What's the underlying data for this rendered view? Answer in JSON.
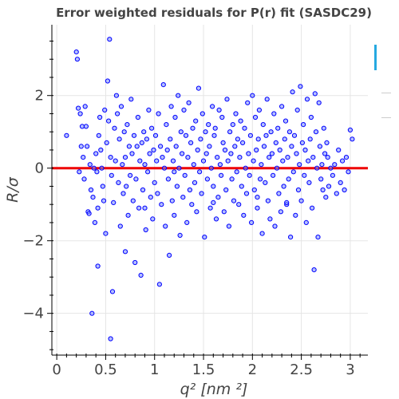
{
  "chart_data": {
    "type": "scatter",
    "title": "Error weighted residuals for P(r) fit (SASDC29)",
    "xlabel": "q² [nm ²]",
    "ylabel": "R/σ",
    "xlim": [
      -0.05,
      3.18
    ],
    "ylim": [
      -5.15,
      3.95
    ],
    "xticks": [
      0,
      0.5,
      1,
      1.5,
      2,
      2.5,
      3
    ],
    "xtick_labels": [
      "0",
      "0.5",
      "1",
      "1.5",
      "2",
      "2.5",
      "3"
    ],
    "yticks": [
      -4,
      -2,
      0,
      2
    ],
    "ytick_labels": [
      "−4",
      "−2",
      "0",
      "2"
    ],
    "grid": true,
    "reference_line": {
      "y": 0,
      "color": "#ee0000"
    },
    "marker": {
      "fill": "#8c96ff",
      "stroke": "#0000ff"
    },
    "points": [
      [
        0.1,
        0.9
      ],
      [
        0.2,
        3.2
      ],
      [
        0.21,
        3.0
      ],
      [
        0.22,
        1.65
      ],
      [
        0.23,
        -0.1
      ],
      [
        0.24,
        1.5
      ],
      [
        0.25,
        0.6
      ],
      [
        0.26,
        1.15
      ],
      [
        0.27,
        0.3
      ],
      [
        0.28,
        -0.3
      ],
      [
        0.29,
        1.7
      ],
      [
        0.3,
        1.15
      ],
      [
        0.31,
        0.6
      ],
      [
        0.32,
        -1.2
      ],
      [
        0.33,
        -1.25
      ],
      [
        0.34,
        0.1
      ],
      [
        0.35,
        -0.6
      ],
      [
        0.36,
        -4.0
      ],
      [
        0.37,
        -0.8
      ],
      [
        0.38,
        0.0
      ],
      [
        0.39,
        -1.5
      ],
      [
        0.4,
        0.4
      ],
      [
        0.41,
        -0.1
      ],
      [
        0.42,
        -1.1
      ],
      [
        0.43,
        0.9
      ],
      [
        0.44,
        1.4
      ],
      [
        0.45,
        0.5
      ],
      [
        0.46,
        0.0
      ],
      [
        0.47,
        -0.5
      ],
      [
        0.48,
        -0.9
      ],
      [
        0.49,
        1.6
      ],
      [
        0.5,
        -1.8
      ],
      [
        0.51,
        0.7
      ],
      [
        0.52,
        2.4
      ],
      [
        0.53,
        1.3
      ],
      [
        0.54,
        3.55
      ],
      [
        0.55,
        0.3
      ],
      [
        0.56,
        -0.2
      ],
      [
        0.57,
        -3.4
      ],
      [
        0.58,
        -0.95
      ],
      [
        0.59,
        1.1
      ],
      [
        0.6,
        0.2
      ],
      [
        0.61,
        2.0
      ],
      [
        0.62,
        1.5
      ],
      [
        0.63,
        -0.4
      ],
      [
        0.64,
        0.8
      ],
      [
        0.65,
        -1.6
      ],
      [
        0.66,
        1.7
      ],
      [
        0.67,
        0.1
      ],
      [
        0.68,
        -0.7
      ],
      [
        0.69,
        1.0
      ],
      [
        0.7,
        0.3
      ],
      [
        0.71,
        -0.5
      ],
      [
        0.72,
        1.2
      ],
      [
        0.73,
        -1.3
      ],
      [
        0.74,
        0.6
      ],
      [
        0.75,
        -0.2
      ],
      [
        0.76,
        1.9
      ],
      [
        0.77,
        0.4
      ],
      [
        0.78,
        -0.9
      ],
      [
        0.79,
        0.9
      ],
      [
        0.8,
        -2.6
      ],
      [
        0.81,
        -0.3
      ],
      [
        0.82,
        0.6
      ],
      [
        0.83,
        1.4
      ],
      [
        0.84,
        -1.1
      ],
      [
        0.85,
        0.2
      ],
      [
        0.86,
        -2.95
      ],
      [
        0.87,
        0.7
      ],
      [
        0.88,
        -0.6
      ],
      [
        0.89,
        1.0
      ],
      [
        0.9,
        0.1
      ],
      [
        0.91,
        -1.7
      ],
      [
        0.92,
        0.8
      ],
      [
        0.93,
        -0.1
      ],
      [
        0.94,
        1.6
      ],
      [
        0.95,
        0.4
      ],
      [
        0.96,
        -0.8
      ],
      [
        0.97,
        1.1
      ],
      [
        0.98,
        -1.4
      ],
      [
        0.99,
        0.5
      ],
      [
        1.0,
        -0.4
      ],
      [
        1.01,
        0.9
      ],
      [
        1.02,
        0.2
      ],
      [
        1.03,
        -0.7
      ],
      [
        1.04,
        1.5
      ],
      [
        1.05,
        -3.2
      ],
      [
        1.06,
        0.6
      ],
      [
        1.07,
        -1.0
      ],
      [
        1.08,
        0.3
      ],
      [
        1.09,
        2.3
      ],
      [
        1.1,
        0.0
      ],
      [
        1.11,
        -1.6
      ],
      [
        1.12,
        1.2
      ],
      [
        1.13,
        0.5
      ],
      [
        1.14,
        -0.3
      ],
      [
        1.15,
        -2.4
      ],
      [
        1.16,
        0.8
      ],
      [
        1.17,
        1.7
      ],
      [
        1.18,
        -0.9
      ],
      [
        1.19,
        0.2
      ],
      [
        1.2,
        -1.3
      ],
      [
        1.21,
        1.4
      ],
      [
        1.22,
        0.6
      ],
      [
        1.23,
        -0.5
      ],
      [
        1.24,
        2.0
      ],
      [
        1.25,
        0.0
      ],
      [
        1.26,
        -1.85
      ],
      [
        1.27,
        1.0
      ],
      [
        1.28,
        0.4
      ],
      [
        1.29,
        -0.8
      ],
      [
        1.3,
        1.6
      ],
      [
        1.31,
        -0.2
      ],
      [
        1.32,
        0.9
      ],
      [
        1.33,
        -1.5
      ],
      [
        1.34,
        0.3
      ],
      [
        1.35,
        1.8
      ],
      [
        1.36,
        -0.6
      ],
      [
        1.37,
        0.7
      ],
      [
        1.38,
        -1.0
      ],
      [
        1.39,
        1.1
      ],
      [
        1.4,
        0.1
      ],
      [
        1.41,
        -0.4
      ],
      [
        1.42,
        1.3
      ],
      [
        1.43,
        -1.2
      ],
      [
        1.44,
        0.5
      ],
      [
        1.45,
        2.2
      ],
      [
        1.46,
        -0.1
      ],
      [
        1.47,
        0.8
      ],
      [
        1.48,
        -0.7
      ],
      [
        1.49,
        1.5
      ],
      [
        1.5,
        0.2
      ],
      [
        1.51,
        -1.9
      ],
      [
        1.52,
        1.0
      ],
      [
        1.53,
        0.4
      ],
      [
        1.54,
        -0.3
      ],
      [
        1.55,
        1.2
      ],
      [
        1.56,
        0.6
      ],
      [
        1.57,
        -1.1
      ],
      [
        1.58,
        0.0
      ],
      [
        1.59,
        1.7
      ],
      [
        1.6,
        -0.5
      ],
      [
        1.61,
        0.9
      ],
      [
        1.62,
        1.1
      ],
      [
        1.63,
        -1.4
      ],
      [
        1.64,
        0.3
      ],
      [
        1.65,
        -0.8
      ],
      [
        1.66,
        1.6
      ],
      [
        1.67,
        0.1
      ],
      [
        1.68,
        -0.2
      ],
      [
        1.69,
        1.4
      ],
      [
        1.7,
        0.7
      ],
      [
        1.71,
        -1.2
      ],
      [
        1.72,
        0.5
      ],
      [
        1.73,
        -0.6
      ],
      [
        1.74,
        1.9
      ],
      [
        1.75,
        0.2
      ],
      [
        1.76,
        -1.6
      ],
      [
        1.77,
        1.0
      ],
      [
        1.78,
        0.4
      ],
      [
        1.79,
        -0.3
      ],
      [
        1.8,
        1.2
      ],
      [
        1.81,
        -0.9
      ],
      [
        1.82,
        0.6
      ],
      [
        1.83,
        1.5
      ],
      [
        1.84,
        -0.1
      ],
      [
        1.85,
        0.8
      ],
      [
        1.86,
        -1.0
      ],
      [
        1.87,
        0.3
      ],
      [
        1.88,
        1.3
      ],
      [
        1.89,
        -0.5
      ],
      [
        1.9,
        0.7
      ],
      [
        1.91,
        -1.3
      ],
      [
        1.92,
        1.1
      ],
      [
        1.93,
        0.0
      ],
      [
        1.94,
        -0.7
      ],
      [
        1.95,
        1.8
      ],
      [
        1.96,
        0.4
      ],
      [
        1.97,
        -0.2
      ],
      [
        1.98,
        0.9
      ],
      [
        1.99,
        -1.5
      ],
      [
        2.0,
        2.0
      ],
      [
        2.01,
        0.2
      ],
      [
        2.02,
        -0.6
      ],
      [
        2.03,
        1.4
      ],
      [
        2.04,
        0.5
      ],
      [
        2.05,
        -1.1
      ],
      [
        2.06,
        0.8
      ],
      [
        2.07,
        1.6
      ],
      [
        2.08,
        -0.3
      ],
      [
        2.09,
        0.1
      ],
      [
        2.1,
        -1.8
      ],
      [
        2.11,
        1.2
      ],
      [
        2.12,
        0.6
      ],
      [
        2.13,
        -0.4
      ],
      [
        2.14,
        0.9
      ],
      [
        2.15,
        1.9
      ],
      [
        2.16,
        -0.9
      ],
      [
        2.17,
        0.3
      ],
      [
        2.18,
        -1.4
      ],
      [
        2.19,
        1.0
      ],
      [
        2.2,
        0.4
      ],
      [
        2.21,
        -0.2
      ],
      [
        2.22,
        1.5
      ],
      [
        2.23,
        -1.6
      ],
      [
        2.24,
        0.7
      ],
      [
        2.25,
        0.0
      ],
      [
        2.26,
        1.1
      ],
      [
        2.27,
        -0.7
      ],
      [
        2.28,
        0.5
      ],
      [
        2.29,
        -1.2
      ],
      [
        2.3,
        1.7
      ],
      [
        2.31,
        0.2
      ],
      [
        2.32,
        -0.5
      ],
      [
        2.33,
        0.8
      ],
      [
        2.34,
        1.3
      ],
      [
        2.35,
        -1.0
      ],
      [
        2.36,
        0.3
      ],
      [
        2.37,
        -0.3
      ],
      [
        2.38,
        1.0
      ],
      [
        2.39,
        -1.9
      ],
      [
        2.4,
        0.6
      ],
      [
        2.41,
        2.1
      ],
      [
        2.42,
        -0.1
      ],
      [
        2.43,
        0.9
      ],
      [
        2.44,
        -1.3
      ],
      [
        2.45,
        0.4
      ],
      [
        2.46,
        1.6
      ],
      [
        2.47,
        -0.6
      ],
      [
        2.48,
        0.1
      ],
      [
        2.49,
        2.25
      ],
      [
        2.5,
        -0.9
      ],
      [
        2.51,
        0.7
      ],
      [
        2.52,
        1.2
      ],
      [
        2.53,
        -0.2
      ],
      [
        2.54,
        0.5
      ],
      [
        2.55,
        -1.5
      ],
      [
        2.56,
        1.9
      ],
      [
        2.57,
        0.2
      ],
      [
        2.58,
        -0.4
      ],
      [
        2.59,
        0.8
      ],
      [
        2.6,
        1.4
      ],
      [
        2.61,
        -1.1
      ],
      [
        2.62,
        0.3
      ],
      [
        2.63,
        -2.8
      ],
      [
        2.64,
        2.05
      ],
      [
        2.65,
        1.0
      ],
      [
        2.66,
        0.0
      ],
      [
        2.67,
        -1.9
      ],
      [
        2.68,
        1.8
      ],
      [
        2.69,
        0.6
      ],
      [
        2.7,
        -0.3
      ],
      [
        2.71,
        0.1
      ],
      [
        2.72,
        -0.6
      ],
      [
        2.73,
        1.1
      ],
      [
        2.74,
        0.4
      ],
      [
        2.75,
        -0.8
      ],
      [
        2.76,
        0.7
      ],
      [
        2.77,
        0.3
      ],
      [
        2.78,
        -0.5
      ],
      [
        2.8,
        0.0
      ],
      [
        2.82,
        -0.2
      ],
      [
        2.84,
        0.1
      ],
      [
        2.86,
        -0.7
      ],
      [
        2.88,
        0.5
      ],
      [
        2.9,
        -0.4
      ],
      [
        2.92,
        0.2
      ],
      [
        2.94,
        -0.6
      ],
      [
        2.96,
        0.3
      ],
      [
        2.98,
        -0.1
      ],
      [
        3.0,
        1.05
      ],
      [
        3.02,
        0.8
      ],
      [
        0.42,
        -2.7
      ],
      [
        0.55,
        -4.7
      ],
      [
        0.7,
        -2.3
      ],
      [
        0.9,
        -1.1
      ],
      [
        1.2,
        -0.1
      ],
      [
        1.6,
        -0.95
      ],
      [
        2.05,
        -0.8
      ],
      [
        2.35,
        -0.95
      ]
    ]
  },
  "toolbar": {
    "accent": "#26a9e0"
  }
}
